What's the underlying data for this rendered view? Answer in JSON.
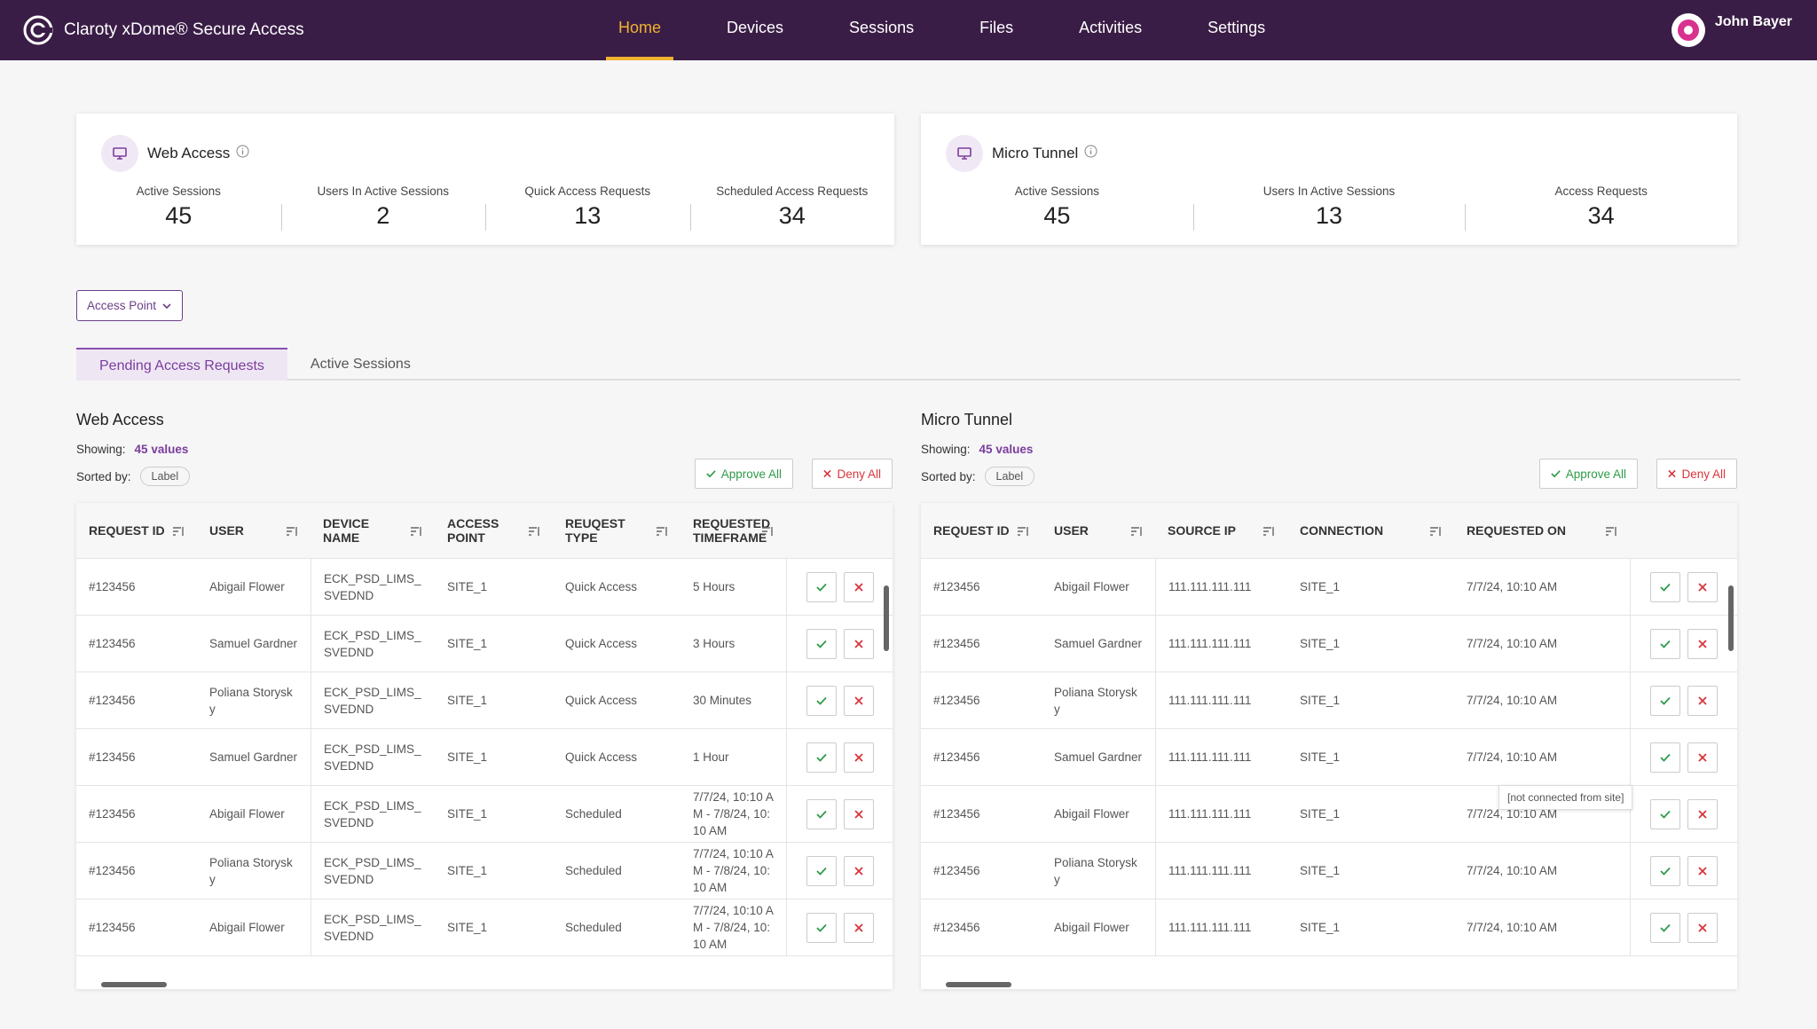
{
  "header": {
    "brand": "Claroty xDome® Secure Access",
    "nav": [
      "Home",
      "Devices",
      "Sessions",
      "Files",
      "Activities",
      "Settings"
    ],
    "user": "John Bayer"
  },
  "summary": [
    {
      "title": "Web Access",
      "stats": [
        {
          "label": "Active Sessions",
          "value": 45
        },
        {
          "label": "Users In Active Sessions",
          "value": 2
        },
        {
          "label": "Quick Access Requests",
          "value": 13
        },
        {
          "label": "Scheduled Access Requests",
          "value": 34
        }
      ]
    },
    {
      "title": "Micro Tunnel",
      "stats": [
        {
          "label": "Active Sessions",
          "value": 45
        },
        {
          "label": "Users In Active Sessions",
          "value": 13
        },
        {
          "label": "Access Requests",
          "value": 34
        }
      ]
    }
  ],
  "filter": "Access Point",
  "tabs": [
    "Pending Access Requests",
    "Active Sessions"
  ],
  "panels": [
    {
      "title": "Web Access",
      "showing_label": "Showing:",
      "showing": "45 values",
      "sorted_label": "Sorted by:",
      "sorted": "Label",
      "approve": "Approve All",
      "deny": "Deny All",
      "columns": [
        "REQUEST ID",
        "USER",
        "DEVICE NAME",
        "ACCESS POINT",
        "REUQEST TYPE",
        "REQUESTED TIMEFRAME"
      ],
      "rows": [
        [
          "#123456",
          "Abigail Flower",
          "ECK_PSD_LIMS_SVEDND",
          "SITE_1",
          "Quick Access",
          "5 Hours"
        ],
        [
          "#123456",
          "Samuel Gardner",
          "ECK_PSD_LIMS_SVEDND",
          "SITE_1",
          "Quick Access",
          "3 Hours"
        ],
        [
          "#123456",
          "Poliana Storysky",
          "ECK_PSD_LIMS_SVEDND",
          "SITE_1",
          "Quick Access",
          "30 Minutes"
        ],
        [
          "#123456",
          "Samuel Gardner",
          "ECK_PSD_LIMS_SVEDND",
          "SITE_1",
          "Quick Access",
          "1 Hour"
        ],
        [
          "#123456",
          "Abigail Flower",
          "ECK_PSD_LIMS_SVEDND",
          "SITE_1",
          "Scheduled",
          "7/7/24, 10:10 AM - 7/8/24, 10:10 AM"
        ],
        [
          "#123456",
          "Poliana Storysky",
          "ECK_PSD_LIMS_SVEDND",
          "SITE_1",
          "Scheduled",
          "7/7/24, 10:10 AM - 7/8/24, 10:10 AM"
        ],
        [
          "#123456",
          "Abigail Flower",
          "ECK_PSD_LIMS_SVEDND",
          "SITE_1",
          "Scheduled",
          "7/7/24, 10:10 AM - 7/8/24, 10:10 AM"
        ]
      ]
    },
    {
      "title": "Micro Tunnel",
      "showing_label": "Showing:",
      "showing": "45 values",
      "sorted_label": "Sorted by:",
      "sorted": "Label",
      "approve": "Approve All",
      "deny": "Deny All",
      "columns": [
        "REQUEST ID",
        "USER",
        "SOURCE IP",
        "CONNECTION",
        "REQUESTED ON"
      ],
      "rows": [
        [
          "#123456",
          "Abigail Flower",
          "111.111.111.111",
          "SITE_1",
          "7/7/24, 10:10 AM"
        ],
        [
          "#123456",
          "Samuel Gardner",
          "111.111.111.111",
          "SITE_1",
          "7/7/24, 10:10 AM"
        ],
        [
          "#123456",
          "Poliana Storysky",
          "111.111.111.111",
          "SITE_1",
          "7/7/24, 10:10 AM"
        ],
        [
          "#123456",
          "Samuel Gardner",
          "111.111.111.111",
          "SITE_1",
          "7/7/24, 10:10 AM"
        ],
        [
          "#123456",
          "Abigail Flower",
          "111.111.111.111",
          "SITE_1",
          "7/7/24, 10:10 AM"
        ],
        [
          "#123456",
          "Poliana Storysky",
          "111.111.111.111",
          "SITE_1",
          "7/7/24, 10:10 AM"
        ],
        [
          "#123456",
          "Abigail Flower",
          "111.111.111.111",
          "SITE_1",
          "7/7/24, 10:10 AM"
        ]
      ]
    }
  ],
  "tooltip": "[not connected from site]"
}
